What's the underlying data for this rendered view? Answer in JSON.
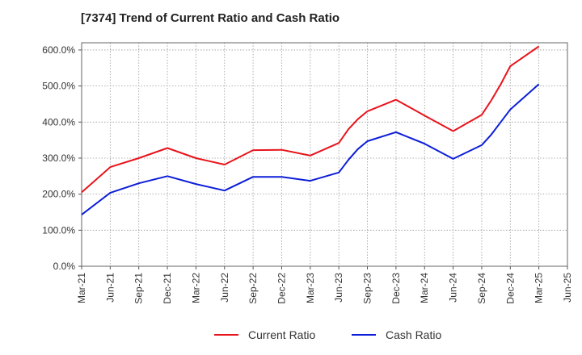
{
  "chart_data": {
    "type": "line",
    "title": "[7374]  Trend of Current Ratio and Cash Ratio",
    "xlabel": "",
    "ylabel": "",
    "x_ticks": [
      "Mar-21",
      "Jun-21",
      "Sep-21",
      "Dec-21",
      "Mar-22",
      "Jun-22",
      "Sep-22",
      "Dec-22",
      "Mar-23",
      "Jun-23",
      "Sep-23",
      "Dec-23",
      "Mar-24",
      "Jun-24",
      "Sep-24",
      "Dec-24",
      "Mar-25",
      "Jun-25"
    ],
    "y_ticks": [
      "0.0%",
      "100.0%",
      "200.0%",
      "300.0%",
      "400.0%",
      "500.0%",
      "600.0%"
    ],
    "ylim": [
      0,
      620
    ],
    "grid": true,
    "legend_position": "bottom-center",
    "x": [
      "Mar-21",
      "Jun-21",
      "Sep-21",
      "Dec-21",
      "Mar-22",
      "Jun-22",
      "Sep-22",
      "Dec-22",
      "Mar-23",
      "Jun-23",
      "Jul-23",
      "Aug-23",
      "Sep-23",
      "Dec-23",
      "Mar-24",
      "Jun-24",
      "Sep-24",
      "Oct-24",
      "Nov-24",
      "Dec-24",
      "Mar-25"
    ],
    "series": [
      {
        "name": "Current Ratio",
        "color": "#e8141c",
        "values": [
          205,
          275,
          300,
          328,
          300,
          282,
          322,
          323,
          307,
          342,
          380,
          408,
          430,
          462,
          418,
          375,
          420,
          460,
          505,
          555,
          610
        ]
      },
      {
        "name": "Cash Ratio",
        "color": "#0c1ed8",
        "values": [
          143,
          204,
          230,
          250,
          228,
          210,
          248,
          248,
          237,
          260,
          295,
          325,
          347,
          372,
          340,
          298,
          336,
          365,
          400,
          435,
          505
        ]
      }
    ]
  }
}
